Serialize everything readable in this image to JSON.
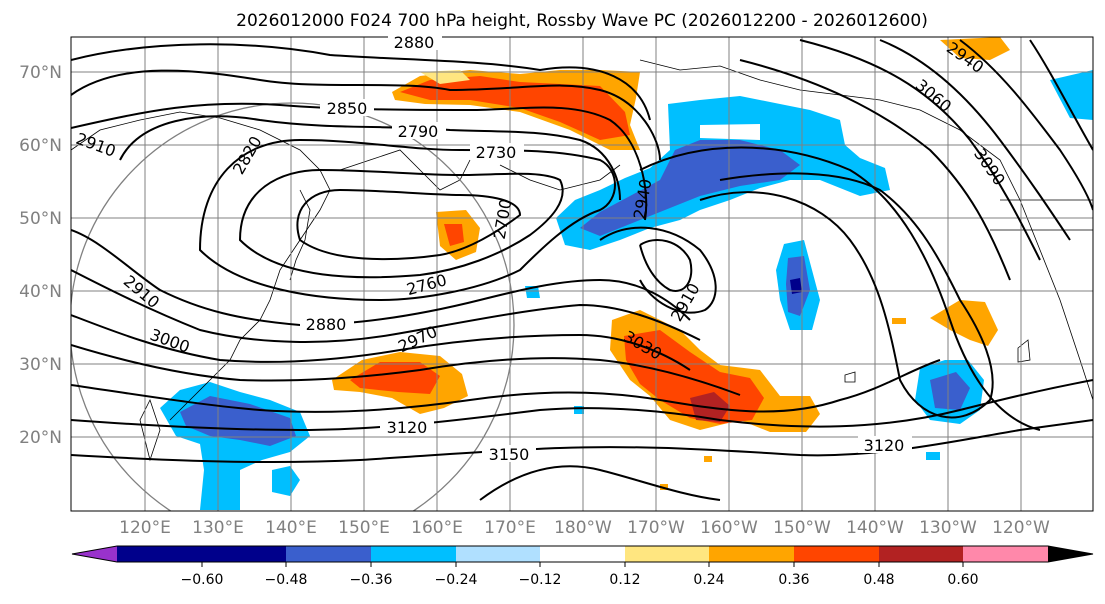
{
  "title": "2026012000 F024 700 hPa height, Rossby Wave PC (2026012200 - 2026012600)",
  "map": {
    "lat_labels": [
      "70°N",
      "60°N",
      "50°N",
      "40°N",
      "30°N",
      "20°N"
    ],
    "lon_labels": [
      "120°E",
      "130°E",
      "140°E",
      "150°E",
      "160°E",
      "170°E",
      "180°W",
      "170°W",
      "160°W",
      "150°W",
      "140°W",
      "130°W",
      "120°W"
    ],
    "contour_labels": [
      "2880",
      "2850",
      "2790",
      "2730",
      "2820",
      "2910",
      "2940",
      "2700",
      "3060",
      "3090",
      "2910",
      "2760",
      "2880",
      "2970",
      "3000",
      "3030",
      "2910",
      "3120",
      "3150",
      "3120",
      "2940"
    ],
    "contour_interval": 30,
    "gridlines": true
  },
  "colorbar": {
    "ticks": [
      "−0.60",
      "−0.48",
      "−0.36",
      "−0.24",
      "−0.12",
      "0.12",
      "0.24",
      "0.36",
      "0.48",
      "0.60"
    ],
    "colors": [
      "#9932cc",
      "#00008b",
      "#3a5fcd",
      "#00bfff",
      "#b0e0ff",
      "#ffffff",
      "#ffe680",
      "#ffa500",
      "#ff4500",
      "#b22222",
      "#ff88aa"
    ]
  }
}
